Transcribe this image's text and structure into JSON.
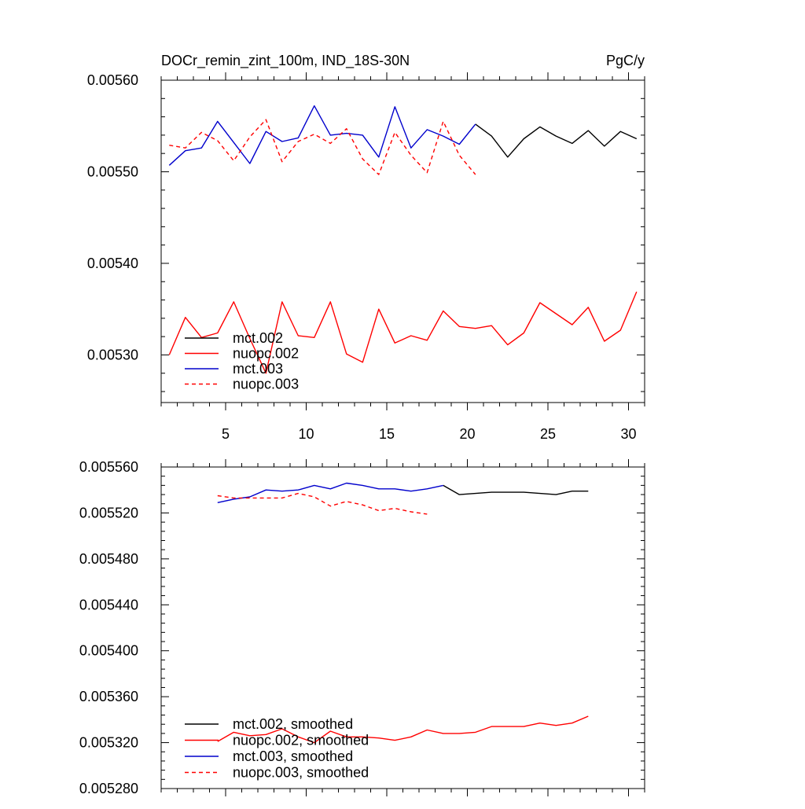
{
  "chart_data": [
    {
      "type": "line",
      "title": "DOCr_remin_zint_100m, IND_18S-30N",
      "units": "PgC/y",
      "xlabel": "",
      "ylabel": "",
      "xlim": [
        1,
        31
      ],
      "ylim": [
        0.005248,
        0.0056
      ],
      "y_ticks": [
        0.0053,
        0.0054,
        0.0055,
        0.0056
      ],
      "y_tick_labels": [
        "0.00530",
        "0.00540",
        "0.00550",
        "0.00560"
      ],
      "x_ticks": [
        5,
        10,
        15,
        20,
        25,
        30
      ],
      "x_tick_labels": [
        "5",
        "10",
        "15",
        "20",
        "25",
        "30"
      ],
      "legend_position": "bottom-left",
      "series": [
        {
          "name": "mct.002",
          "color": "#000000",
          "dash": "solid",
          "x": [
            20.5,
            21.5,
            22.5,
            23.5,
            24.5,
            25.5,
            26.5,
            27.5,
            28.5,
            29.5,
            30.5
          ],
          "values": [
            0.005552,
            0.005539,
            0.005516,
            0.005536,
            0.005549,
            0.005539,
            0.005531,
            0.005545,
            0.005528,
            0.005544,
            0.005536
          ]
        },
        {
          "name": "nuopc.002",
          "color": "#ff0000",
          "dash": "solid",
          "x": [
            1.5,
            2.5,
            3.5,
            4.5,
            5.5,
            6.5,
            7.5,
            8.5,
            9.5,
            10.5,
            11.5,
            12.5,
            13.5,
            14.5,
            15.5,
            16.5,
            17.5,
            18.5,
            19.5,
            20.5,
            21.5,
            22.5,
            23.5,
            24.5,
            25.5,
            26.5,
            27.5,
            28.5,
            29.5,
            30.5
          ],
          "values": [
            0.0053,
            0.005341,
            0.005319,
            0.005324,
            0.005358,
            0.005318,
            0.00528,
            0.005358,
            0.005321,
            0.005319,
            0.005358,
            0.005301,
            0.005292,
            0.00535,
            0.005313,
            0.005321,
            0.005316,
            0.005348,
            0.005331,
            0.005329,
            0.005332,
            0.005311,
            0.005324,
            0.005357,
            0.005345,
            0.005333,
            0.005352,
            0.005315,
            0.005327,
            0.005369
          ]
        },
        {
          "name": "mct.003",
          "color": "#0000cc",
          "dash": "solid",
          "x": [
            1.5,
            2.5,
            3.5,
            4.5,
            5.5,
            6.5,
            7.5,
            8.5,
            9.5,
            10.5,
            11.5,
            12.5,
            13.5,
            14.5,
            15.5,
            16.5,
            17.5,
            18.5,
            19.5,
            20.5
          ],
          "values": [
            0.005507,
            0.005523,
            0.005526,
            0.005555,
            0.005532,
            0.005509,
            0.005544,
            0.005533,
            0.005537,
            0.005572,
            0.00554,
            0.005542,
            0.00554,
            0.005516,
            0.005571,
            0.005526,
            0.005546,
            0.005539,
            0.00553,
            0.005552
          ]
        },
        {
          "name": "nuopc.003",
          "color": "#ff0000",
          "dash": "dashed",
          "x": [
            1.5,
            2.5,
            3.5,
            4.5,
            5.5,
            6.5,
            7.5,
            8.5,
            9.5,
            10.5,
            11.5,
            12.5,
            13.5,
            14.5,
            15.5,
            16.5,
            17.5,
            18.5,
            19.5,
            20.5
          ],
          "values": [
            0.005529,
            0.005526,
            0.005543,
            0.005534,
            0.005512,
            0.005538,
            0.005557,
            0.005511,
            0.005533,
            0.005541,
            0.005531,
            0.005547,
            0.005514,
            0.005497,
            0.005543,
            0.005518,
            0.005499,
            0.005555,
            0.005518,
            0.005497
          ]
        }
      ]
    },
    {
      "type": "line",
      "title": "",
      "xlabel": "",
      "ylabel": "",
      "xlim": [
        1,
        31
      ],
      "ylim": [
        0.00528,
        0.00556
      ],
      "y_ticks": [
        0.00528,
        0.00532,
        0.00536,
        0.0054,
        0.00544,
        0.00548,
        0.00552,
        0.00556
      ],
      "y_tick_labels": [
        "0.005280",
        "0.005320",
        "0.005360",
        "0.005400",
        "0.005440",
        "0.005480",
        "0.005520",
        "0.005560"
      ],
      "x_ticks": [
        5,
        10,
        15,
        20,
        25,
        30
      ],
      "x_tick_labels": [],
      "legend_position": "bottom-left",
      "series": [
        {
          "name": "mct.002, smoothed",
          "color": "#000000",
          "dash": "solid",
          "x": [
            18.5,
            19.5,
            20.5,
            21.5,
            22.5,
            23.5,
            24.5,
            25.5,
            26.5,
            27.5
          ],
          "values": [
            0.005544,
            0.005536,
            0.005537,
            0.005538,
            0.005538,
            0.005538,
            0.005537,
            0.005536,
            0.005539,
            0.005539
          ]
        },
        {
          "name": "nuopc.002, smoothed",
          "color": "#ff0000",
          "dash": "solid",
          "x": [
            4.5,
            5.5,
            6.5,
            7.5,
            8.5,
            9.5,
            10.5,
            11.5,
            12.5,
            13.5,
            14.5,
            15.5,
            16.5,
            17.5,
            18.5,
            19.5,
            20.5,
            21.5,
            22.5,
            23.5,
            24.5,
            25.5,
            26.5,
            27.5
          ],
          "values": [
            0.005321,
            0.005329,
            0.005326,
            0.005327,
            0.005332,
            0.005325,
            0.00532,
            0.00533,
            0.005325,
            0.005325,
            0.005324,
            0.005322,
            0.005325,
            0.005331,
            0.005328,
            0.005328,
            0.005329,
            0.005334,
            0.005334,
            0.005334,
            0.005337,
            0.005335,
            0.005337,
            0.005343
          ]
        },
        {
          "name": "mct.003, smoothed",
          "color": "#0000cc",
          "dash": "solid",
          "x": [
            4.5,
            5.5,
            6.5,
            7.5,
            8.5,
            9.5,
            10.5,
            11.5,
            12.5,
            13.5,
            14.5,
            15.5,
            16.5,
            17.5,
            18.5
          ],
          "values": [
            0.005529,
            0.005532,
            0.005534,
            0.00554,
            0.005539,
            0.00554,
            0.005544,
            0.005541,
            0.005546,
            0.005544,
            0.005541,
            0.005541,
            0.005539,
            0.005541,
            0.005544
          ]
        },
        {
          "name": "nuopc.003, smoothed",
          "color": "#ff0000",
          "dash": "dashed",
          "x": [
            4.5,
            5.5,
            6.5,
            7.5,
            8.5,
            9.5,
            10.5,
            11.5,
            12.5,
            13.5,
            14.5,
            15.5,
            16.5,
            17.5
          ],
          "values": [
            0.005535,
            0.005533,
            0.005533,
            0.005533,
            0.005533,
            0.005537,
            0.005534,
            0.005526,
            0.00553,
            0.005527,
            0.005522,
            0.005524,
            0.005521,
            0.005519
          ]
        }
      ]
    }
  ]
}
